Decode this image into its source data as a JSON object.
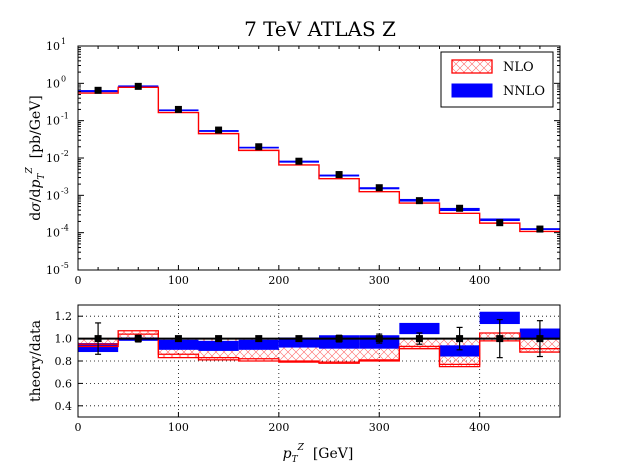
{
  "chart_data": [
    {
      "type": "line",
      "title": "7 TeV ATLAS Z",
      "xlabel": "",
      "ylabel": "dσ/dp_T^Z  [pb/GeV]",
      "yscale": "log",
      "xlim": [
        0,
        480
      ],
      "ylim": [
        1e-05,
        10
      ],
      "x_ticks": [
        "0",
        "100",
        "200",
        "300",
        "400"
      ],
      "y_ticks": [
        {
          "base": "10",
          "exp": "1"
        },
        {
          "base": "10",
          "exp": "0"
        },
        {
          "base": "10",
          "exp": "-1"
        },
        {
          "base": "10",
          "exp": "-2"
        },
        {
          "base": "10",
          "exp": "-3"
        },
        {
          "base": "10",
          "exp": "-4"
        },
        {
          "base": "10",
          "exp": "-5"
        }
      ],
      "bin_edges": [
        0,
        40,
        80,
        120,
        160,
        200,
        240,
        280,
        320,
        360,
        400,
        440,
        480
      ],
      "legend": {
        "position": "top-right",
        "entries": [
          "NLO",
          "NNLO"
        ]
      },
      "series": [
        {
          "name": "NLO",
          "style": "hatched-band",
          "color": "#ff0000",
          "values": [
            0.55,
            0.78,
            0.165,
            0.045,
            0.016,
            0.0065,
            0.0028,
            0.00125,
            0.00062,
            0.00033,
            0.00018,
            0.000108
          ]
        },
        {
          "name": "NNLO",
          "style": "filled-band",
          "color": "#0000ff",
          "lower": [
            0.58,
            0.8,
            0.18,
            0.05,
            0.018,
            0.0075,
            0.0032,
            0.00145,
            0.00068,
            0.00038,
            0.000205,
            0.000118
          ],
          "upper": [
            0.66,
            0.88,
            0.2,
            0.056,
            0.02,
            0.0085,
            0.0036,
            0.00165,
            0.0008,
            0.00046,
            0.00024,
            0.000132
          ]
        },
        {
          "name": "data",
          "style": "points",
          "color": "#000000",
          "x": [
            20,
            60,
            100,
            140,
            180,
            220,
            260,
            300,
            340,
            380,
            420,
            460
          ],
          "values": [
            0.65,
            0.83,
            0.2,
            0.056,
            0.02,
            0.0082,
            0.0036,
            0.0016,
            0.00072,
            0.00045,
            0.000185,
            0.000125
          ]
        }
      ]
    },
    {
      "type": "line",
      "title": "",
      "xlabel": "p_T^Z  [GeV]",
      "ylabel": "theory/data",
      "xlim": [
        0,
        480
      ],
      "ylim": [
        0.3,
        1.3
      ],
      "x_ticks": [
        "0",
        "100",
        "200",
        "300",
        "400"
      ],
      "y_ticks": [
        "0.4",
        "0.6",
        "0.8",
        "1.0",
        "1.2"
      ],
      "grid": true,
      "bin_edges": [
        0,
        40,
        80,
        120,
        160,
        200,
        240,
        280,
        320,
        360,
        400,
        440,
        480
      ],
      "series": [
        {
          "name": "NLO",
          "style": "hatched-band",
          "color": "#ff0000",
          "lower": [
            0.93,
            1.04,
            0.83,
            0.81,
            0.8,
            0.79,
            0.78,
            0.8,
            0.91,
            0.75,
            0.98,
            0.88
          ],
          "upper": [
            0.95,
            1.07,
            0.86,
            0.83,
            0.82,
            0.8,
            0.79,
            0.81,
            0.93,
            0.77,
            1.05,
            0.91
          ]
        },
        {
          "name": "NNLO",
          "style": "filled-band",
          "color": "#0000ff",
          "lower": [
            0.88,
            0.98,
            0.9,
            0.89,
            0.9,
            0.92,
            0.91,
            0.91,
            1.04,
            0.84,
            1.13,
            0.99
          ],
          "upper": [
            0.96,
            1.01,
            0.99,
            0.98,
            0.99,
            1.01,
            1.03,
            1.03,
            1.14,
            0.94,
            1.24,
            1.09
          ]
        },
        {
          "name": "data",
          "style": "points",
          "color": "#000000",
          "x": [
            20,
            60,
            100,
            140,
            180,
            220,
            260,
            300,
            340,
            380,
            420,
            460
          ],
          "values": [
            1.0,
            1.0,
            1.0,
            1.0,
            1.0,
            1.0,
            1.0,
            1.0,
            1.0,
            1.0,
            1.0,
            1.0
          ],
          "err": [
            0.14,
            0.03,
            0.02,
            0.02,
            0.02,
            0.02,
            0.03,
            0.04,
            0.05,
            0.1,
            0.17,
            0.16
          ]
        }
      ]
    }
  ]
}
